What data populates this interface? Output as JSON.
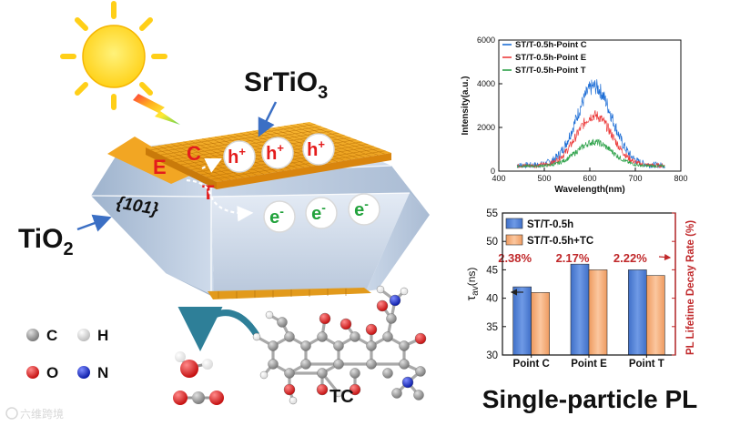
{
  "scheme": {
    "srtio3_label": "SrTiO",
    "srtio3_sub": "3",
    "tio2_label": "TiO",
    "tio2_sub": "2",
    "facet_label": "{101}",
    "site_e": "E",
    "site_c": "C",
    "site_t": "T",
    "hole_symbol": "h",
    "hole_charge": "+",
    "electron_symbol": "e",
    "electron_charge": "-",
    "hole_count": 3,
    "electron_count": 3
  },
  "legend": {
    "atoms": [
      {
        "symbol": "C",
        "color": "#8a8a8a"
      },
      {
        "symbol": "H",
        "color": "#e6e6e6"
      },
      {
        "symbol": "O",
        "color": "#e01818"
      },
      {
        "symbol": "N",
        "color": "#1428c8"
      }
    ]
  },
  "molecule_label": "TC",
  "watermark": "六维跨境",
  "footer_title": "Single-particle PL",
  "colors": {
    "red_text": "#c0282a",
    "bar_blue": "#4f81d8",
    "bar_orange": "#f4ae7c",
    "line_blue": "#1f6fd6",
    "line_red": "#ec3d3d",
    "line_green": "#2ea24a"
  },
  "chart_data": [
    {
      "type": "line",
      "title": "",
      "xlabel": "Wavelength(nm)",
      "ylabel": "Intensity(a.u.)",
      "xlim": [
        400,
        800
      ],
      "ylim": [
        0,
        6000
      ],
      "xticks": [
        400,
        500,
        600,
        700,
        800
      ],
      "yticks": [
        0,
        2000,
        4000,
        6000
      ],
      "x_range_data": [
        440,
        765
      ],
      "series": [
        {
          "name": "ST/T-0.5h-Point C",
          "peak_x": 610,
          "peak_y": 3600,
          "width": 55,
          "baseline": 450,
          "noise": 380,
          "color": "#1f6fd6"
        },
        {
          "name": "ST/T-0.5h-Point E",
          "peak_x": 610,
          "peak_y": 2300,
          "width": 55,
          "baseline": 420,
          "noise": 260,
          "color": "#ec3d3d"
        },
        {
          "name": "ST/T-0.5h-Point T",
          "peak_x": 610,
          "peak_y": 1100,
          "width": 55,
          "baseline": 380,
          "noise": 160,
          "color": "#2ea24a"
        }
      ]
    },
    {
      "type": "bar",
      "title": "",
      "categories": [
        "Point C",
        "Point E",
        "Point T"
      ],
      "ylabel": "τav(ns)",
      "ylabel_base": "τ",
      "ylabel_sub": "av",
      "ylabel_unit": "(ns)",
      "y2label": "PL Lifetime Decay Rate (%)",
      "ylim": [
        30,
        55
      ],
      "yticks": [
        30,
        35,
        40,
        45,
        50,
        55
      ],
      "series": [
        {
          "name": "ST/T-0.5h",
          "values": [
            42.0,
            46.0,
            45.0
          ],
          "color": "#4f81d8"
        },
        {
          "name": "ST/T-0.5h+TC",
          "values": [
            41.0,
            45.0,
            44.0
          ],
          "color": "#f4ae7c"
        }
      ],
      "decay_rates": [
        "2.38%",
        "2.17%",
        "2.22%"
      ]
    }
  ]
}
